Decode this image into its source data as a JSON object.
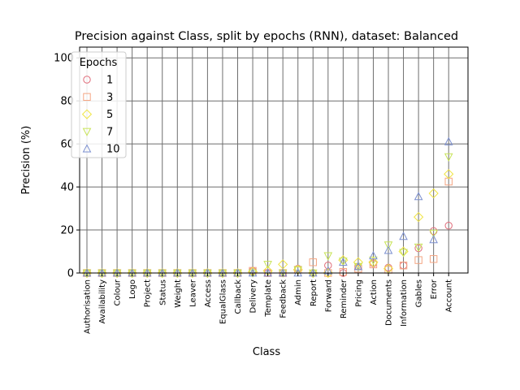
{
  "chart_data": {
    "type": "scatter",
    "title": "Precision against Class, split by epochs (RNN), dataset: Balanced",
    "xlabel": "Class",
    "ylabel": "Precision (%)",
    "ylim": [
      0,
      105
    ],
    "yticks": [
      0,
      20,
      40,
      60,
      80,
      100
    ],
    "grid": true,
    "legend_title": "Epochs",
    "legend_position": "top-left",
    "categories": [
      "Authorisation",
      "Availability",
      "Colour",
      "Logo",
      "Project",
      "Status",
      "Weight",
      "Leaver",
      "Access",
      "EqualGlass",
      "Callback",
      "Delivery",
      "Template",
      "Feedback",
      "Admin",
      "Report",
      "Forward",
      "Reminder",
      "Pricing",
      "Action",
      "Documents",
      "Information",
      "Gables",
      "Error",
      "Account"
    ],
    "series": [
      {
        "name": "1",
        "marker": "circle",
        "color": "#e06c7a",
        "values": [
          0,
          0,
          0,
          0,
          0,
          0,
          0,
          0,
          0,
          0,
          0,
          1,
          0,
          0,
          2,
          0,
          3.5,
          0,
          3,
          4.5,
          2.5,
          3.5,
          11.5,
          19.5,
          22
        ]
      },
      {
        "name": "3",
        "marker": "square",
        "color": "#f4a582",
        "values": [
          0,
          0,
          0,
          0,
          0,
          0,
          0,
          0,
          0,
          0,
          0,
          1,
          0,
          0,
          1.5,
          5,
          0,
          0.5,
          2,
          4,
          1.5,
          3.5,
          6,
          6.5,
          42.5
        ]
      },
      {
        "name": "5",
        "marker": "diamond",
        "color": "#f0e442",
        "values": [
          0,
          0,
          0,
          0,
          0,
          0,
          0,
          0,
          0,
          0,
          0,
          0.5,
          1,
          4,
          1.5,
          0,
          0,
          6,
          5,
          5,
          2,
          10,
          26,
          37,
          46
        ]
      },
      {
        "name": "7",
        "marker": "triangle-down",
        "color": "#c7e356",
        "values": [
          0,
          0,
          0,
          0,
          0,
          0,
          0,
          0,
          0,
          0,
          0,
          0,
          4,
          0,
          1.5,
          0,
          8,
          5.5,
          3,
          6,
          13,
          9.5,
          12,
          18.5,
          54
        ]
      },
      {
        "name": "10",
        "marker": "triangle-up",
        "color": "#7b8fcf",
        "values": [
          0,
          0,
          0,
          0,
          0,
          0,
          0,
          0,
          0,
          0,
          0,
          0,
          0,
          0,
          0,
          0,
          1,
          5,
          3,
          8,
          10.5,
          17,
          35.5,
          15.5,
          61
        ]
      }
    ]
  }
}
